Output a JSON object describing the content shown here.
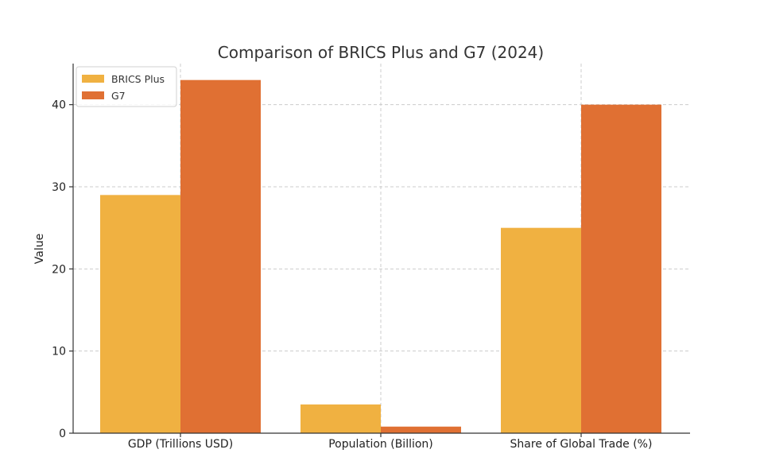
{
  "chart_data": {
    "type": "bar",
    "title": "Comparison of BRICS Plus and G7 (2024)",
    "xlabel": "",
    "ylabel": "Value",
    "categories": [
      "GDP (Trillions USD)",
      "Population (Billion)",
      "Share of Global Trade (%)"
    ],
    "series": [
      {
        "name": "BRICS Plus",
        "color": "#f0b141",
        "values": [
          29,
          3.5,
          25
        ]
      },
      {
        "name": "G7",
        "color": "#e07033",
        "values": [
          43,
          0.8,
          40
        ]
      }
    ],
    "ylim": [
      0,
      45
    ],
    "yticks": [
      0,
      10,
      20,
      30,
      40
    ],
    "grid": true,
    "legend_position": "top-left"
  }
}
